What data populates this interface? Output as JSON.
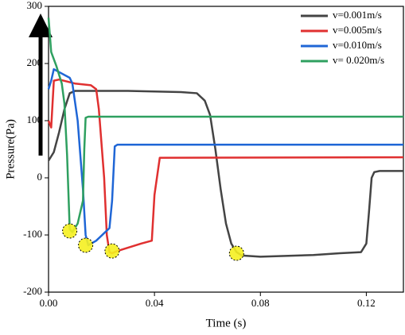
{
  "chart_data": {
    "type": "line",
    "xlabel": "Time (s)",
    "ylabel": "Pressure(Pa)",
    "xlim": [
      0,
      0.134
    ],
    "ylim": [
      -200,
      300
    ],
    "xticks": [
      {
        "value": 0,
        "label": "0.00"
      },
      {
        "value": 0.04,
        "label": "0.04"
      },
      {
        "value": 0.08,
        "label": "0.08"
      },
      {
        "value": 0.12,
        "label": "0.12"
      }
    ],
    "yticks": [
      -200,
      -100,
      0,
      100,
      200,
      300
    ],
    "legend": "upper right",
    "series": [
      {
        "name": "v=0.001m/s",
        "color": "#444444",
        "x": [
          0,
          0.002,
          0.004,
          0.006,
          0.008,
          0.01,
          0.03,
          0.05,
          0.056,
          0.059,
          0.061,
          0.063,
          0.065,
          0.067,
          0.069,
          0.071,
          0.073,
          0.08,
          0.1,
          0.11,
          0.118,
          0.12,
          0.121,
          0.122,
          0.123,
          0.125,
          0.134
        ],
        "values": [
          30,
          45,
          80,
          120,
          148,
          152,
          152,
          150,
          148,
          135,
          110,
          50,
          -20,
          -80,
          -115,
          -130,
          -136,
          -138,
          -135,
          -132,
          -130,
          -115,
          -60,
          0,
          10,
          12,
          12
        ]
      },
      {
        "name": "v=0.005m/s",
        "color": "#e03030",
        "x": [
          0,
          0.001,
          0.002,
          0.004,
          0.01,
          0.016,
          0.018,
          0.019,
          0.021,
          0.022,
          0.023,
          0.024,
          0.026,
          0.035,
          0.039,
          0.04,
          0.042,
          0.134
        ],
        "values": [
          100,
          88,
          170,
          172,
          165,
          162,
          155,
          120,
          0,
          -100,
          -130,
          -132,
          -128,
          -115,
          -110,
          -30,
          35,
          36
        ]
      },
      {
        "name": "v=0.010m/s",
        "color": "#1f66d6",
        "x": [
          0,
          0.001,
          0.002,
          0.004,
          0.008,
          0.009,
          0.011,
          0.013,
          0.014,
          0.015,
          0.018,
          0.023,
          0.024,
          0.025,
          0.026,
          0.134
        ],
        "values": [
          155,
          170,
          190,
          185,
          175,
          165,
          100,
          -20,
          -100,
          -118,
          -110,
          -88,
          -40,
          55,
          58,
          58
        ]
      },
      {
        "name": "v= 0.020m/s",
        "color": "#2fa060",
        "x": [
          0,
          0.001,
          0.003,
          0.005,
          0.006,
          0.007,
          0.008,
          0.009,
          0.011,
          0.013,
          0.0135,
          0.014,
          0.015,
          0.134
        ],
        "values": [
          280,
          220,
          195,
          165,
          130,
          40,
          -90,
          -95,
          -80,
          -40,
          50,
          105,
          107,
          107
        ]
      }
    ],
    "highlights": {
      "x": [
        0.071,
        0.024,
        0.014,
        0.008
      ],
      "y": [
        -132,
        -128,
        -118,
        -93
      ]
    }
  }
}
